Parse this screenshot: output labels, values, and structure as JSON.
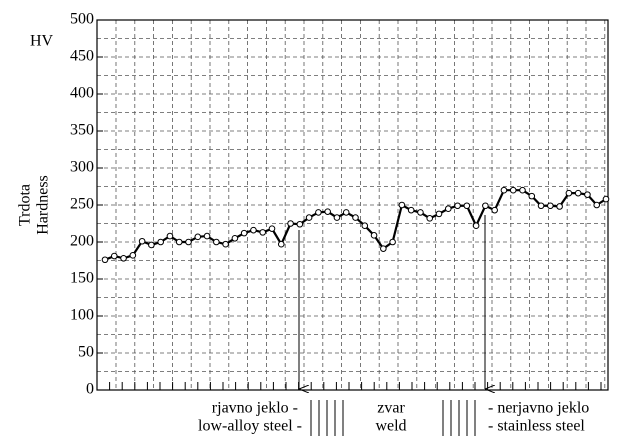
{
  "chart_data": {
    "type": "line",
    "title": "HV",
    "ylabel": [
      "Trdota",
      "Hardness"
    ],
    "values": [
      176,
      181,
      178,
      182,
      201,
      196,
      200,
      208,
      200,
      200,
      207,
      208,
      200,
      197,
      205,
      212,
      216,
      213,
      218,
      197,
      225,
      224,
      233,
      240,
      241,
      233,
      240,
      233,
      222,
      209,
      191,
      200,
      250,
      243,
      240,
      232,
      238,
      245,
      249,
      249,
      222,
      249,
      243,
      270,
      270,
      270,
      262,
      249,
      249,
      248,
      266,
      266,
      264,
      250,
      258
    ],
    "color": "#000000",
    "ylim": [
      0,
      500
    ],
    "yticks": [
      0,
      50,
      100,
      150,
      200,
      250,
      300,
      350,
      400,
      450,
      500
    ],
    "ygrid": [
      25,
      50,
      75,
      100,
      125,
      150,
      175,
      200,
      225,
      250,
      275,
      300,
      325,
      350,
      375,
      400,
      425,
      450,
      475
    ],
    "grid": true,
    "annotations": {
      "left": [
        "rjavno jeklo -",
        "low-alloy steel -"
      ],
      "middle": [
        "zvar",
        "weld"
      ],
      "right": [
        "- nerjavno jeklo",
        "- stainless steel"
      ]
    }
  }
}
